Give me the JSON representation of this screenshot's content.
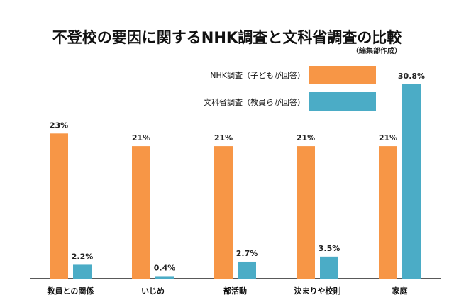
{
  "chart_data": {
    "type": "bar",
    "title": "不登校の要因に関するNHK調査と文科省調査の比較",
    "subtitle": "（編集部作成）",
    "categories": [
      "教員との関係",
      "いじめ",
      "部活動",
      "決まりや校則",
      "家庭"
    ],
    "series": [
      {
        "name": "NHK調査（子どもが回答）",
        "color": "#F79646",
        "values": [
          23,
          21,
          21,
          21,
          21
        ],
        "labels": [
          "23%",
          "21%",
          "21%",
          "21%",
          "21%"
        ]
      },
      {
        "name": "文科省調査（教員らが回答）",
        "color": "#4BACC6",
        "values": [
          2.2,
          0.4,
          2.7,
          3.5,
          30.8
        ],
        "labels": [
          "2.2%",
          "0.4%",
          "2.7%",
          "3.5%",
          "30.8%"
        ]
      }
    ],
    "xlabel": "",
    "ylabel": "",
    "ylim": [
      0,
      32
    ],
    "grid": false,
    "legend_position": "top-right"
  }
}
